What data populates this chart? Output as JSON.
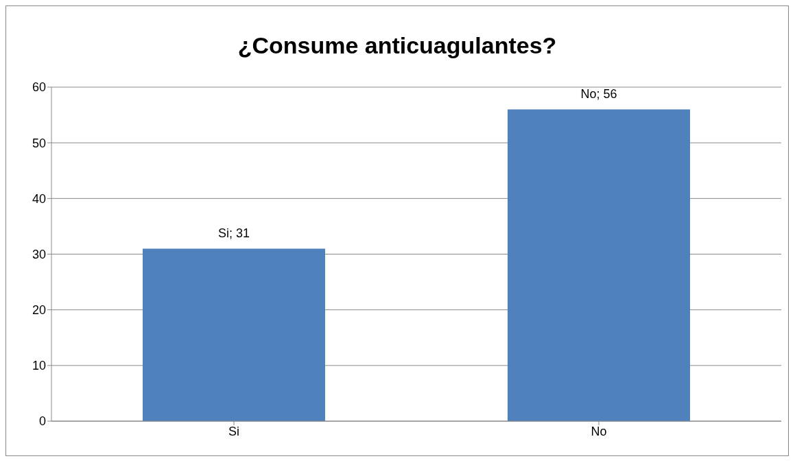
{
  "chart_data": {
    "type": "bar",
    "title": "¿Consume anticuagulantes?",
    "categories": [
      "Si",
      "No"
    ],
    "values": [
      31,
      56
    ],
    "color": "#4f81bd",
    "value_labels": [
      "Si; 31",
      "No; 56"
    ],
    "ylim": [
      0,
      60
    ],
    "yticks": [
      0,
      10,
      20,
      30,
      40,
      50,
      60
    ],
    "grid": "y"
  }
}
